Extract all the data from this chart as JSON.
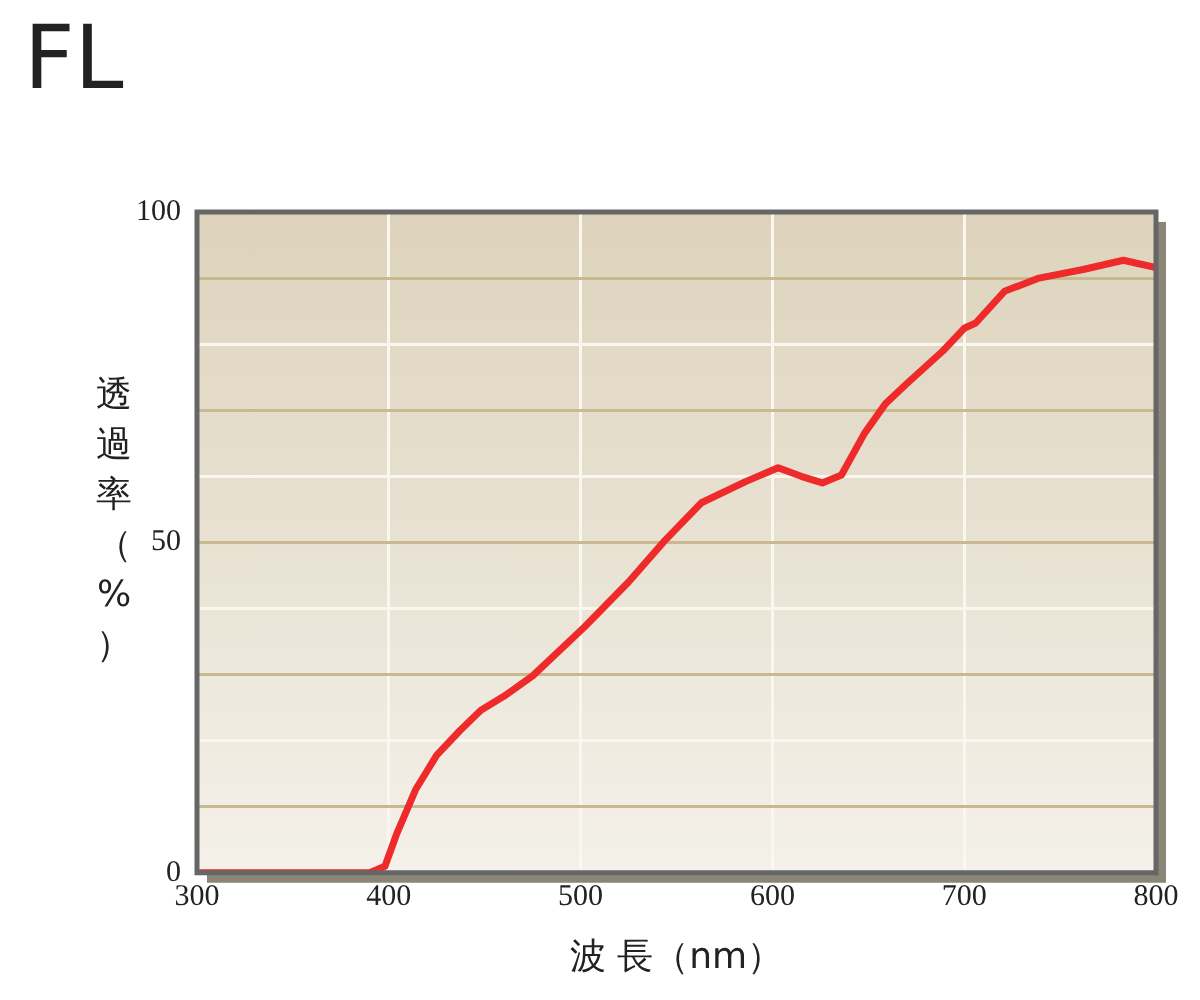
{
  "chart_data": {
    "type": "line",
    "title": "FL",
    "xlabel": "波 長（nm）",
    "ylabel": "透過率（%）",
    "xlim": [
      300,
      800
    ],
    "xticks": [
      300,
      400,
      500,
      600,
      700,
      800
    ],
    "ylim": [
      0,
      100
    ],
    "yticks": [
      0,
      {
        "value": 10,
        "label": null
      },
      {
        "value": 20,
        "label": null
      },
      {
        "value": 30,
        "label": null
      },
      {
        "value": 40,
        "label": null
      },
      50,
      {
        "value": 60,
        "label": null
      },
      {
        "value": 70,
        "label": null
      },
      {
        "value": 80,
        "label": null
      },
      {
        "value": 90,
        "label": null
      },
      100
    ],
    "grid": true,
    "legend": false,
    "marker": "none",
    "line_style": "solid",
    "series": [
      {
        "color": "#ee2a2a",
        "x": [
          300,
          390,
          398,
          404,
          414,
          425,
          437,
          448,
          460,
          475,
          502,
          525,
          544,
          563,
          586,
          603,
          615,
          626,
          636,
          648,
          659,
          670,
          689,
          700,
          706,
          721,
          739,
          762,
          783,
          800
        ],
        "values": [
          0,
          0,
          1,
          5.8,
          12.6,
          17.8,
          21.5,
          24.6,
          26.7,
          29.8,
          37.2,
          44,
          50.3,
          56,
          59.2,
          61.3,
          60,
          59,
          60.2,
          66.5,
          71,
          74,
          79,
          82.4,
          83.2,
          88,
          90,
          91.3,
          92.7,
          91.6
        ]
      }
    ]
  }
}
